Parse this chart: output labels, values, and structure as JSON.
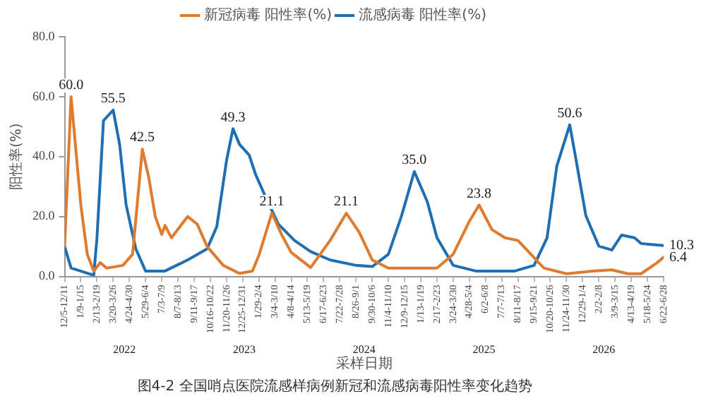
{
  "chart_data": {
    "type": "line",
    "title": "图4-2 全国哨点医院流感样病例新冠和流感病毒阳性率变化趋势",
    "xlabel": "采样日期",
    "ylabel": "阳性率(%)",
    "xlim": [
      "2022-12-05",
      "2026-06-22"
    ],
    "xticks": [
      {
        "value": "2022-12-05",
        "label": "12/5-12/11"
      },
      {
        "value": "2023-01-09",
        "label": "1/9-1/15"
      },
      {
        "value": "2023-02-13",
        "label": "2/13-2/19"
      },
      {
        "value": "2023-03-20",
        "label": "3/20-3/26"
      },
      {
        "value": "2023-04-24",
        "label": "4/24-4/30"
      },
      {
        "value": "2023-05-29",
        "label": "5/29-6/4"
      },
      {
        "value": "2023-07-03",
        "label": "7/3-7/9"
      },
      {
        "value": "2023-08-07",
        "label": "8/7-8/13"
      },
      {
        "value": "2023-09-11",
        "label": "9/11-9/17"
      },
      {
        "value": "2023-10-16",
        "label": "10/16-10/22"
      },
      {
        "value": "2023-11-20",
        "label": "11/20-11/26"
      },
      {
        "value": "2023-12-25",
        "label": "12/25-12/31"
      },
      {
        "value": "2024-01-29",
        "label": "1/29-2/4"
      },
      {
        "value": "2024-03-04",
        "label": "3/4-3/10"
      },
      {
        "value": "2024-04-08",
        "label": "4/8-4/14"
      },
      {
        "value": "2024-05-13",
        "label": "5/13-5/19"
      },
      {
        "value": "2024-06-17",
        "label": "6/17-6/23"
      },
      {
        "value": "2024-07-22",
        "label": "7/22-7/28"
      },
      {
        "value": "2024-08-26",
        "label": "8/26-9/1"
      },
      {
        "value": "2024-09-30",
        "label": "9/30-10/6"
      },
      {
        "value": "2024-11-04",
        "label": "11/4-11/10"
      },
      {
        "value": "2024-12-09",
        "label": "12/9-12/15"
      },
      {
        "value": "2025-01-13",
        "label": "1/13-1/19"
      },
      {
        "value": "2025-02-17",
        "label": "2/17-2/23"
      },
      {
        "value": "2025-03-24",
        "label": "3/24-3/30"
      },
      {
        "value": "2025-04-28",
        "label": "4/28-5/4"
      },
      {
        "value": "2025-06-02",
        "label": "6/2-6/8"
      },
      {
        "value": "2025-07-07",
        "label": "7/7-7/13"
      },
      {
        "value": "2025-08-11",
        "label": "8/11-8/17"
      },
      {
        "value": "2025-09-15",
        "label": "9/15-9/21"
      },
      {
        "value": "2025-10-20",
        "label": "10/20-10/26"
      },
      {
        "value": "2025-11-24",
        "label": "11/24-11/30"
      },
      {
        "value": "2025-12-29",
        "label": "12/29-1/4"
      },
      {
        "value": "2026-02-02",
        "label": "2/2-2/8"
      },
      {
        "value": "2026-03-09",
        "label": "3/9-3/15"
      },
      {
        "value": "2026-04-13",
        "label": "4/13-4/19"
      },
      {
        "value": "2026-05-18",
        "label": "5/18-5/24"
      },
      {
        "value": "2026-06-22",
        "label": "6/22-6/28"
      }
    ],
    "ylim": [
      0,
      80
    ],
    "yticks": [
      {
        "value": 0,
        "label": "0.0"
      },
      {
        "value": 20,
        "label": "20.0"
      },
      {
        "value": 40,
        "label": "40.0"
      },
      {
        "value": 60,
        "label": "60.0"
      },
      {
        "value": 80,
        "label": "80.0"
      }
    ],
    "grid": false,
    "legend": "top",
    "marker": "none",
    "line_style": "solid",
    "series": [
      {
        "name": "新冠病毒 阳性率(%)",
        "color": "#e07b2e",
        "x": [
          "2022-12-05",
          "2022-12-19",
          "2023-01-09",
          "2023-01-23",
          "2023-02-06",
          "2023-02-20",
          "2023-03-06",
          "2023-04-10",
          "2023-05-01",
          "2023-05-22",
          "2023-06-05",
          "2023-06-19",
          "2023-07-03",
          "2023-07-10",
          "2023-07-24",
          "2023-08-28",
          "2023-09-18",
          "2023-10-09",
          "2023-11-13",
          "2023-12-18",
          "2024-01-15",
          "2024-01-29",
          "2024-02-26",
          "2024-03-18",
          "2024-04-08",
          "2024-05-20",
          "2024-07-01",
          "2024-08-05",
          "2024-09-02",
          "2024-09-30",
          "2024-11-04",
          "2025-02-17",
          "2025-03-24",
          "2025-04-28",
          "2025-05-19",
          "2025-06-16",
          "2025-07-14",
          "2025-08-11",
          "2025-09-08",
          "2025-10-06",
          "2025-11-24",
          "2026-01-19",
          "2026-03-02",
          "2026-04-06",
          "2026-05-04",
          "2026-06-08",
          "2026-06-22"
        ],
        "values": [
          10,
          60,
          24,
          7.4,
          1.8,
          4.6,
          2.8,
          3.7,
          7.4,
          42.5,
          33,
          20,
          14,
          17,
          12.9,
          20,
          17.4,
          10,
          3.7,
          1,
          1.8,
          7,
          21.1,
          14,
          8,
          3,
          12,
          21.1,
          14.7,
          5.5,
          2.8,
          2.8,
          7.4,
          18.4,
          23.8,
          15.6,
          12.9,
          12,
          7.4,
          2.8,
          0.9,
          1.8,
          2.2,
          0.9,
          0.9,
          4.6,
          6.4
        ]
      },
      {
        "name": "流感病毒 阳性率(%)",
        "color": "#1f6fb4",
        "x": [
          "2022-12-05",
          "2022-12-19",
          "2023-02-06",
          "2023-02-13",
          "2023-02-27",
          "2023-03-20",
          "2023-04-03",
          "2023-04-17",
          "2023-05-08",
          "2023-05-29",
          "2023-07-10",
          "2023-08-28",
          "2023-10-09",
          "2023-10-30",
          "2023-11-20",
          "2023-12-04",
          "2023-12-18",
          "2024-01-08",
          "2024-01-22",
          "2024-02-12",
          "2024-03-11",
          "2024-04-15",
          "2024-05-20",
          "2024-07-01",
          "2024-08-26",
          "2024-09-30",
          "2024-11-04",
          "2024-12-02",
          "2024-12-30",
          "2025-01-27",
          "2025-02-17",
          "2025-03-24",
          "2025-05-12",
          "2025-08-04",
          "2025-09-15",
          "2025-10-13",
          "2025-11-03",
          "2025-12-01",
          "2025-12-15",
          "2026-01-05",
          "2026-02-02",
          "2026-03-02",
          "2026-03-23",
          "2026-04-20",
          "2026-05-04",
          "2026-05-25",
          "2026-06-22"
        ],
        "values": [
          10,
          2.8,
          0.4,
          12.9,
          52,
          55.5,
          44,
          23.9,
          9.2,
          1.8,
          1.8,
          5.5,
          9.2,
          16.6,
          38.6,
          49.3,
          44.1,
          40.5,
          34,
          26.7,
          17.5,
          12,
          8.3,
          5.5,
          3.7,
          3.3,
          7.4,
          20,
          35,
          25,
          12.9,
          3.7,
          1.8,
          1.8,
          3.7,
          12.9,
          36.8,
          50.6,
          38.6,
          20.2,
          10.1,
          8.8,
          13.8,
          12.9,
          11,
          10.7,
          10.3
        ]
      }
    ],
    "annotations": [
      {
        "text": "60.0",
        "x": "2022-12-19",
        "y": 60
      },
      {
        "text": "55.5",
        "x": "2023-03-20",
        "y": 55.5
      },
      {
        "text": "42.5",
        "x": "2023-05-22",
        "y": 42.5
      },
      {
        "text": "49.3",
        "x": "2023-12-04",
        "y": 49.3
      },
      {
        "text": "21.1",
        "x": "2024-02-26",
        "y": 21.1
      },
      {
        "text": "21.1",
        "x": "2024-08-05",
        "y": 21.1
      },
      {
        "text": "35.0",
        "x": "2024-12-30",
        "y": 35
      },
      {
        "text": "23.8",
        "x": "2025-05-19",
        "y": 23.8
      },
      {
        "text": "50.6",
        "x": "2025-12-01",
        "y": 50.6
      },
      {
        "text": "10.3",
        "x": "2026-06-22",
        "y": 10.3
      },
      {
        "text": "6.4",
        "x": "2026-06-22",
        "y": 6.4
      },
      "2022",
      "2023",
      "2024",
      "2025",
      "2026"
    ]
  }
}
